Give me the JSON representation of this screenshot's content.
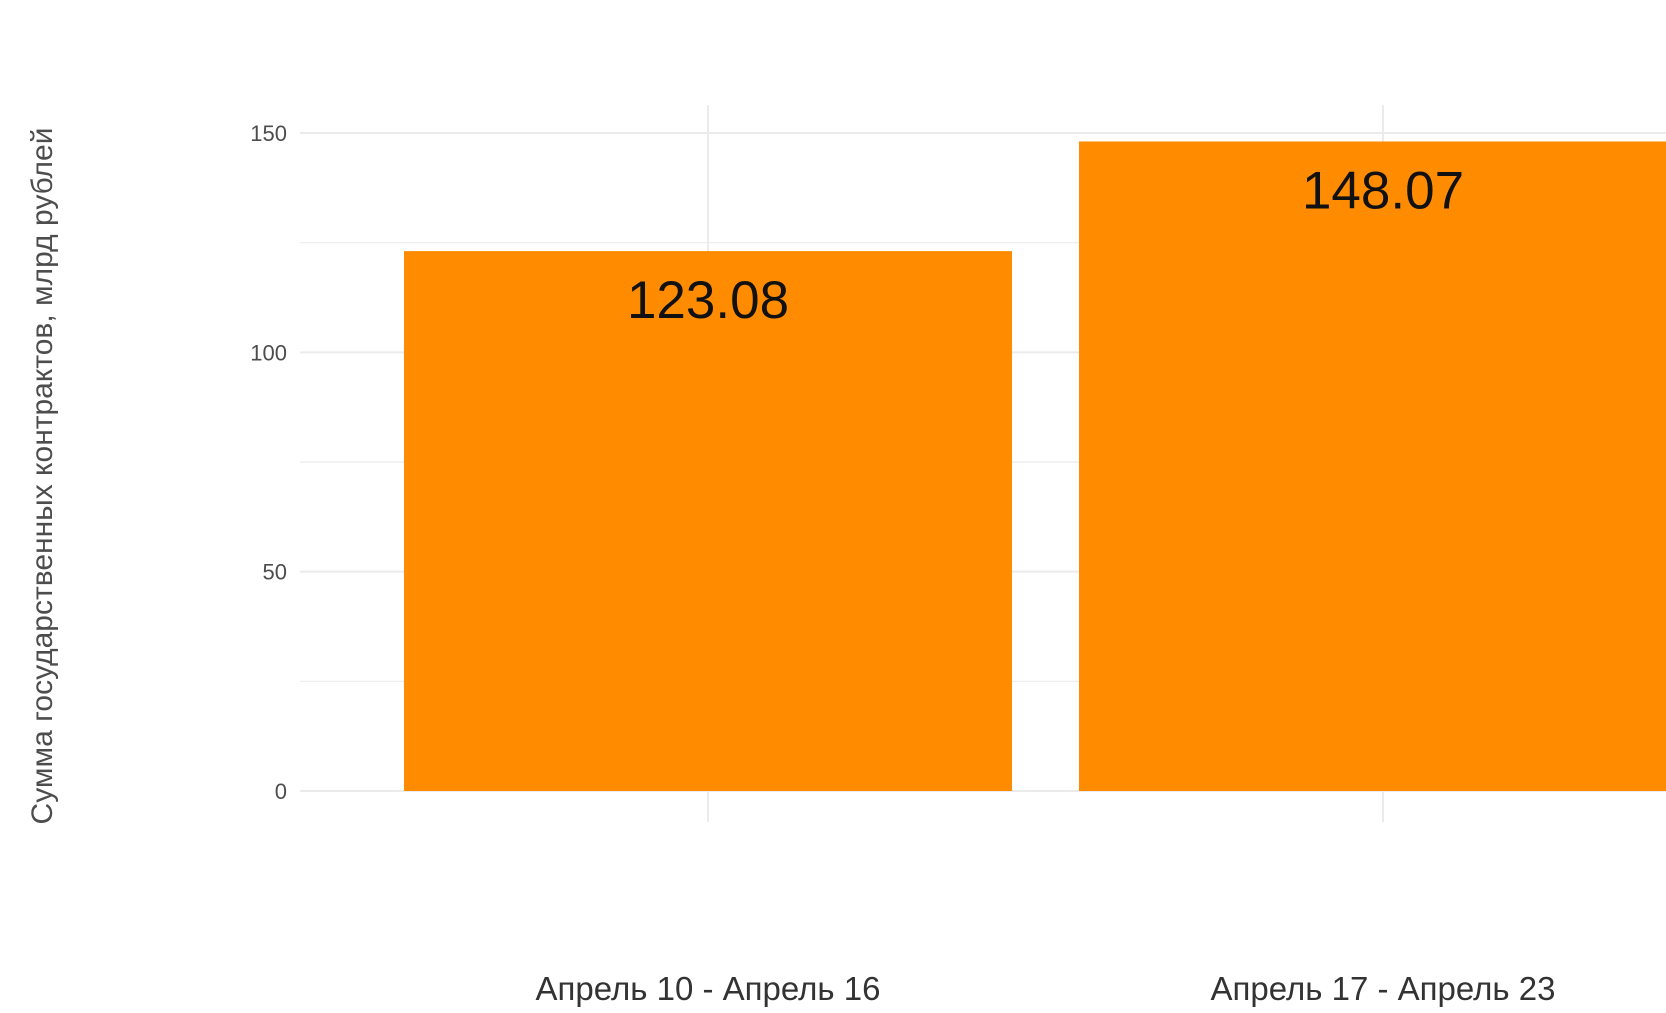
{
  "chart_data": {
    "type": "bar",
    "title": "",
    "xlabel": "",
    "ylabel": "Сумма государственных контрактов, млрд рублей",
    "categories": [
      "Апрель 10 - Апрель 16",
      "Апрель 17 - Апрель 23"
    ],
    "values": [
      123.08,
      148.07
    ],
    "data_labels": [
      "123.08",
      "148.07"
    ],
    "ylim": [
      0,
      150
    ],
    "yticks": [
      0,
      50,
      100,
      150
    ],
    "ytick_labels": [
      "0",
      "50",
      "100",
      "150"
    ],
    "grid": true,
    "legend": "none",
    "colors": {
      "bar": "#FF8C00",
      "grid": "#EBEBEB",
      "tick_text": "#4D4D4D",
      "axis_title": "#4D4D4D",
      "data_label": "#111111",
      "category_text": "#333333"
    }
  }
}
